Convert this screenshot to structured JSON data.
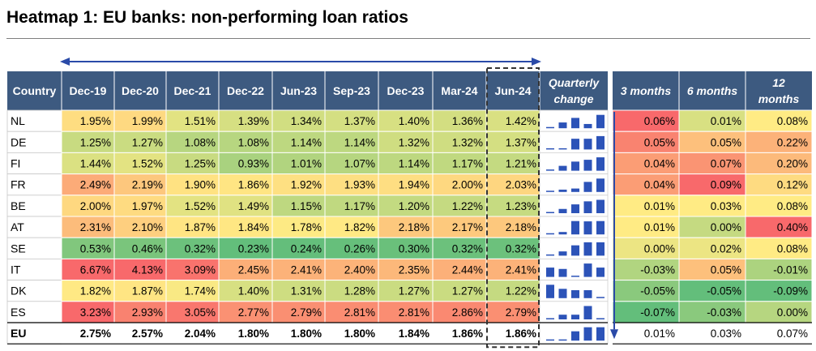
{
  "title": "Heatmap 1: EU banks: non-performing loan ratios",
  "header": {
    "country": "Country",
    "quarterly_line1": "Quarterly",
    "quarterly_line2": "change",
    "changes": [
      "3 months",
      "6 months",
      "12|months"
    ]
  },
  "colors": {
    "header_bg": "#3d5a80",
    "header_text": "#ffffff",
    "arrow": "#2a4aa8",
    "sparkbar": "#2c53b8",
    "low": "#63be7b",
    "mid": "#ffeb84",
    "high": "#f8696b"
  },
  "chart_data": {
    "type": "heatmap",
    "title": "Heatmap 1: EU banks: non-performing loan ratios",
    "columns": [
      "Dec-19",
      "Dec-20",
      "Dec-21",
      "Dec-22",
      "Jun-23",
      "Sep-23",
      "Dec-23",
      "Mar-24",
      "Jun-24"
    ],
    "rows": [
      {
        "country": "NL",
        "values": [
          1.95,
          1.99,
          1.51,
          1.39,
          1.34,
          1.37,
          1.4,
          1.36,
          1.42
        ],
        "changes": [
          0.06,
          0.01,
          0.08
        ]
      },
      {
        "country": "DE",
        "values": [
          1.25,
          1.27,
          1.08,
          1.08,
          1.14,
          1.14,
          1.32,
          1.32,
          1.37
        ],
        "changes": [
          0.05,
          0.05,
          0.22
        ]
      },
      {
        "country": "FI",
        "values": [
          1.44,
          1.52,
          1.25,
          0.93,
          1.01,
          1.07,
          1.14,
          1.17,
          1.21
        ],
        "changes": [
          0.04,
          0.07,
          0.2
        ]
      },
      {
        "country": "FR",
        "values": [
          2.49,
          2.19,
          1.9,
          1.86,
          1.92,
          1.93,
          1.94,
          2.0,
          2.03
        ],
        "changes": [
          0.04,
          0.09,
          0.12
        ]
      },
      {
        "country": "BE",
        "values": [
          2.0,
          1.97,
          1.52,
          1.49,
          1.15,
          1.17,
          1.2,
          1.22,
          1.23
        ],
        "changes": [
          0.01,
          0.03,
          0.08
        ]
      },
      {
        "country": "AT",
        "values": [
          2.31,
          2.1,
          1.87,
          1.84,
          1.78,
          1.82,
          2.18,
          2.17,
          2.18
        ],
        "changes": [
          0.01,
          0.0,
          0.4
        ]
      },
      {
        "country": "SE",
        "values": [
          0.53,
          0.46,
          0.32,
          0.23,
          0.24,
          0.26,
          0.3,
          0.32,
          0.32
        ],
        "changes": [
          0.0,
          0.02,
          0.08
        ]
      },
      {
        "country": "IT",
        "values": [
          6.67,
          4.13,
          3.09,
          2.45,
          2.41,
          2.4,
          2.35,
          2.44,
          2.41
        ],
        "changes": [
          -0.03,
          0.05,
          -0.01
        ]
      },
      {
        "country": "DK",
        "values": [
          1.82,
          1.87,
          1.74,
          1.4,
          1.31,
          1.28,
          1.27,
          1.27,
          1.22
        ],
        "changes": [
          -0.05,
          -0.05,
          -0.09
        ]
      },
      {
        "country": "ES",
        "values": [
          3.23,
          2.93,
          3.05,
          2.77,
          2.79,
          2.81,
          2.81,
          2.86,
          2.79
        ],
        "changes": [
          -0.07,
          -0.03,
          0.0
        ]
      },
      {
        "country": "EU",
        "values": [
          2.75,
          2.57,
          2.04,
          1.8,
          1.8,
          1.8,
          1.84,
          1.86,
          1.86
        ],
        "changes": [
          0.01,
          0.03,
          0.07
        ],
        "bold": true
      }
    ],
    "highlighted_column": "Jun-24",
    "sparkline_column": "Quarterly change",
    "change_columns": [
      "3 months",
      "6 months",
      "12 months"
    ]
  }
}
